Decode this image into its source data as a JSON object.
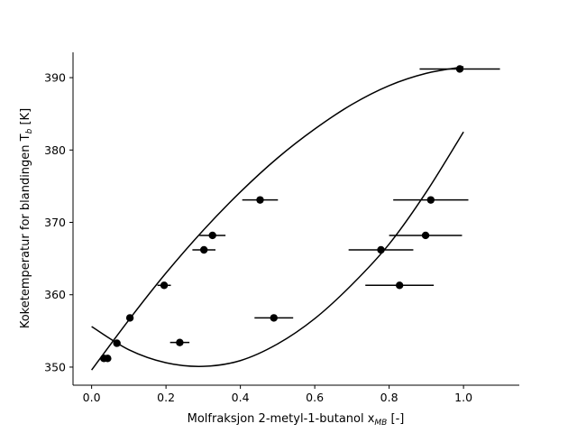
{
  "chart_data": {
    "type": "scatter",
    "xlabel": "Molfraksjon 2-metyl-1-butanol x",
    "xlabel_sub": "MB",
    "xlabel_suffix": " [-]",
    "ylabel": "Koketemperatur for blandingen T",
    "ylabel_sub": "b",
    "ylabel_suffix": " [K]",
    "xlim": [
      -0.05,
      1.15
    ],
    "ylim": [
      347.5,
      393.5
    ],
    "xticks": [
      0.0,
      0.2,
      0.4,
      0.6,
      0.8,
      1.0
    ],
    "xtick_labels": [
      "0.0",
      "0.2",
      "0.4",
      "0.6",
      "0.8",
      "1.0"
    ],
    "yticks": [
      350,
      360,
      370,
      380,
      390
    ],
    "ytick_labels": [
      "350",
      "360",
      "370",
      "380",
      "390"
    ],
    "grid": false,
    "marker_color": "#000000",
    "line_color": "#000000",
    "points": [
      {
        "x": 0.033,
        "y": 351.2,
        "xerr": 0.0
      },
      {
        "x": 0.043,
        "y": 351.2,
        "xerr": 0.0
      },
      {
        "x": 0.068,
        "y": 353.3,
        "xerr": 0.0
      },
      {
        "x": 0.103,
        "y": 356.8,
        "xerr": 0.0
      },
      {
        "x": 0.195,
        "y": 361.3,
        "xerr": 0.018
      },
      {
        "x": 0.237,
        "y": 353.4,
        "xerr": 0.026
      },
      {
        "x": 0.302,
        "y": 366.2,
        "xerr": 0.031
      },
      {
        "x": 0.325,
        "y": 368.2,
        "xerr": 0.035
      },
      {
        "x": 0.453,
        "y": 373.1,
        "xerr": 0.048
      },
      {
        "x": 0.49,
        "y": 356.8,
        "xerr": 0.052
      },
      {
        "x": 0.778,
        "y": 366.2,
        "xerr": 0.087
      },
      {
        "x": 0.828,
        "y": 361.3,
        "xerr": 0.092
      },
      {
        "x": 0.898,
        "y": 368.2,
        "xerr": 0.098
      },
      {
        "x": 0.912,
        "y": 373.1,
        "xerr": 0.101
      },
      {
        "x": 0.99,
        "y": 391.2,
        "xerr": 0.108
      }
    ],
    "curves": [
      {
        "x": [
          0.0,
          0.1,
          0.2,
          0.3,
          0.4,
          0.5,
          0.6,
          0.7,
          0.8,
          0.9,
          1.0
        ],
        "y": [
          349.6,
          356.5,
          363.0,
          368.9,
          374.2,
          378.9,
          382.9,
          386.3,
          388.9,
          390.6,
          391.5
        ]
      },
      {
        "x": [
          0.0,
          0.1,
          0.2,
          0.3,
          0.4,
          0.5,
          0.6,
          0.7,
          0.8,
          0.9,
          1.0
        ],
        "y": [
          355.6,
          352.4,
          350.6,
          350.1,
          350.9,
          353.2,
          356.7,
          361.4,
          367.0,
          374.2,
          382.5
        ]
      }
    ]
  }
}
